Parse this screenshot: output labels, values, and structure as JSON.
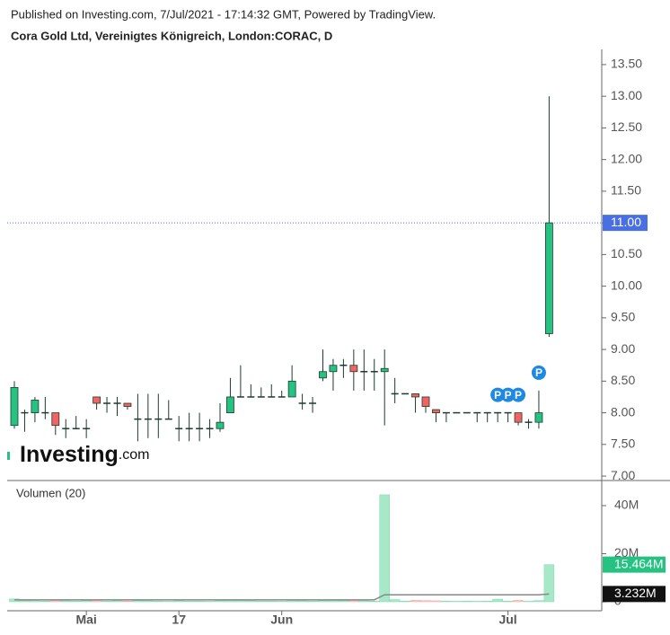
{
  "header": {
    "published": "Published on Investing.com, 7/Jul/2021 - 17:14:32 GMT, Powered by TradingView.",
    "symbol": "Cora Gold Ltd, Vereinigtes Königreich, London:CORAC, D"
  },
  "logo": {
    "name": "Investing",
    "suffix": ".com"
  },
  "chart_data": {
    "type": "candlestick",
    "categories": [
      null,
      null,
      null,
      null,
      null,
      null,
      null,
      "Mai",
      null,
      null,
      null,
      null,
      null,
      null,
      null,
      null,
      "17",
      null,
      null,
      null,
      null,
      null,
      null,
      null,
      null,
      null,
      "Jun",
      null,
      null,
      null,
      null,
      null,
      null,
      null,
      null,
      null,
      null,
      null,
      null,
      null,
      null,
      null,
      null,
      null,
      null,
      null,
      null,
      null,
      "Jul",
      null,
      null,
      null,
      null
    ],
    "open": [
      7.8,
      8.0,
      8.0,
      8.0,
      8.0,
      7.75,
      7.75,
      7.75,
      8.25,
      8.15,
      8.15,
      8.15,
      7.9,
      7.9,
      7.9,
      7.9,
      7.75,
      7.75,
      7.75,
      7.75,
      7.75,
      8.0,
      8.25,
      8.25,
      8.25,
      8.25,
      8.25,
      8.25,
      8.15,
      8.15,
      8.55,
      8.65,
      8.75,
      8.75,
      8.65,
      8.65,
      8.65,
      8.3,
      8.3,
      8.3,
      8.25,
      8.05,
      8.0,
      8.0,
      8.0,
      8.0,
      8.0,
      8.0,
      8.0,
      8.0,
      7.85,
      7.85,
      9.25
    ],
    "high": [
      8.5,
      8.05,
      8.25,
      8.25,
      8.0,
      7.9,
      7.95,
      7.9,
      8.25,
      8.25,
      8.25,
      8.15,
      8.3,
      8.3,
      8.3,
      8.2,
      7.95,
      8.0,
      8.0,
      7.9,
      8.15,
      8.55,
      8.75,
      8.45,
      8.4,
      8.45,
      8.35,
      8.75,
      8.3,
      8.25,
      9.0,
      8.85,
      8.85,
      9.0,
      9.0,
      8.85,
      9.0,
      8.55,
      8.3,
      8.3,
      8.25,
      8.05,
      8.0,
      8.0,
      8.0,
      8.0,
      8.0,
      8.0,
      8.0,
      8.0,
      7.9,
      8.35,
      13.0
    ],
    "low": [
      7.75,
      7.7,
      7.85,
      7.9,
      7.65,
      7.6,
      7.75,
      7.6,
      8.05,
      8.0,
      7.95,
      8.05,
      7.55,
      7.6,
      7.6,
      7.9,
      7.55,
      7.55,
      7.55,
      7.6,
      7.7,
      8.0,
      8.25,
      8.25,
      8.25,
      8.25,
      8.25,
      8.25,
      8.05,
      8.0,
      8.5,
      8.35,
      8.55,
      8.35,
      8.35,
      8.35,
      7.8,
      8.15,
      8.3,
      8.0,
      8.0,
      7.85,
      7.85,
      8.0,
      8.0,
      7.85,
      7.85,
      7.85,
      7.85,
      7.8,
      7.75,
      7.75,
      9.2
    ],
    "close": [
      8.4,
      8.0,
      8.2,
      8.0,
      7.8,
      7.75,
      7.75,
      7.75,
      8.15,
      8.15,
      8.15,
      8.1,
      7.9,
      7.9,
      7.9,
      7.9,
      7.75,
      7.75,
      7.75,
      7.75,
      7.85,
      8.25,
      8.25,
      8.25,
      8.25,
      8.25,
      8.25,
      8.5,
      8.15,
      8.15,
      8.65,
      8.75,
      8.75,
      8.65,
      8.65,
      8.65,
      8.7,
      8.3,
      8.3,
      8.25,
      8.1,
      8.0,
      8.0,
      8.0,
      8.0,
      8.0,
      8.0,
      8.0,
      8.0,
      7.85,
      7.85,
      8.0,
      11.0
    ],
    "up_color": "#26c281",
    "down_color": "#f26363",
    "wick_color": "#1d3b2e",
    "ylim": [
      6.93,
      13.74
    ],
    "yticks": [
      {
        "value": 7,
        "label": "7.00"
      },
      {
        "value": 7.5,
        "label": "7.50"
      },
      {
        "value": 8,
        "label": "8.00"
      },
      {
        "value": 8.5,
        "label": "8.50"
      },
      {
        "value": 9,
        "label": "9.00"
      },
      {
        "value": 9.5,
        "label": "9.50"
      },
      {
        "value": 10,
        "label": "10.00"
      },
      {
        "value": 10.5,
        "label": "10.50"
      },
      {
        "value": 11,
        "label": "11.00"
      },
      {
        "value": 11.5,
        "label": "11.50"
      },
      {
        "value": 12,
        "label": "12.00"
      },
      {
        "value": 12.5,
        "label": "12.50"
      },
      {
        "value": 13,
        "label": "13.00"
      },
      {
        "value": 13.5,
        "label": "13.50"
      }
    ],
    "last_price": {
      "value": 11,
      "label": "11.00",
      "color": "#4a6fe3"
    },
    "events": [
      {
        "index": 47,
        "label": "P"
      },
      {
        "index": 48,
        "label": "P"
      },
      {
        "index": 49,
        "label": "P"
      },
      {
        "index": 51,
        "label": "P"
      }
    ],
    "event_color": "#1e88e5",
    "volume": {
      "title": "Volumen (20)",
      "values": [
        1200000,
        500000,
        800000,
        300000,
        600000,
        400000,
        300000,
        500000,
        700000,
        300000,
        400000,
        300000,
        500000,
        400000,
        300000,
        200000,
        400000,
        300000,
        300000,
        200000,
        600000,
        900000,
        700000,
        400000,
        300000,
        300000,
        200000,
        800000,
        400000,
        300000,
        600000,
        700000,
        500000,
        600000,
        400000,
        300000,
        44500000,
        900000,
        300000,
        600000,
        500000,
        400000,
        300000,
        200000,
        300000,
        200000,
        300000,
        1100000,
        300000,
        600000,
        200000,
        500000,
        15464000
      ],
      "ma": [
        800000,
        800000,
        800000,
        800000,
        800000,
        800000,
        800000,
        800000,
        800000,
        800000,
        800000,
        800000,
        800000,
        800000,
        800000,
        800000,
        800000,
        800000,
        800000,
        800000,
        800000,
        800000,
        800000,
        800000,
        800000,
        800000,
        800000,
        800000,
        800000,
        800000,
        800000,
        800000,
        800000,
        800000,
        800000,
        800000,
        2900000,
        2900000,
        2900000,
        2900000,
        2900000,
        2900000,
        2900000,
        2900000,
        2900000,
        2900000,
        2900000,
        2900000,
        2900000,
        2900000,
        2900000,
        2900000,
        3232000
      ],
      "up_color": "#a6e8c8",
      "down_color": "#f7c9c9",
      "ma_color": "#888888",
      "ylim": [
        0,
        49700000
      ],
      "yticks": [
        0,
        {
          "value": 20000000,
          "label": "20M"
        },
        {
          "value": 40000000,
          "label": "40M"
        }
      ],
      "last_volume": {
        "value": 15464000,
        "label": "15.464M",
        "color": "#26c281"
      },
      "last_ma": {
        "value": 3232000,
        "label": "3.232M",
        "color": "#111111"
      }
    }
  }
}
